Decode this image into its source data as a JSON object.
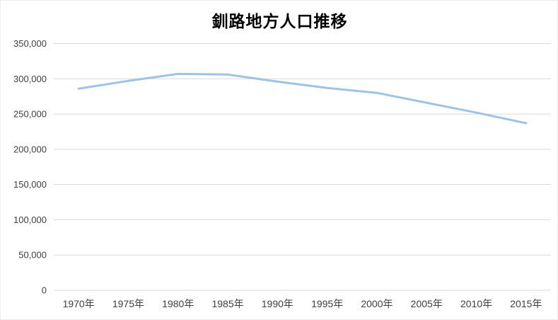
{
  "chart_data": {
    "type": "line",
    "title": "釧路地方人口推移",
    "categories": [
      "1970年",
      "1975年",
      "1980年",
      "1985年",
      "1990年",
      "1995年",
      "2000年",
      "2005年",
      "2010年",
      "2015年"
    ],
    "values": [
      286000,
      297000,
      307000,
      306000,
      296000,
      287000,
      280000,
      266000,
      252000,
      237000
    ],
    "xlabel": "",
    "ylabel": "",
    "ylim": [
      0,
      350000
    ],
    "ytick_step": 50000,
    "ytick_labels": [
      "0",
      "50,000",
      "100,000",
      "150,000",
      "200,000",
      "250,000",
      "300,000",
      "350,000"
    ],
    "grid": "horizontal-only",
    "legend": "none",
    "colors": {
      "line": "#9DC3E6",
      "gridline": "#D9D9D9",
      "tick_text": "#404040",
      "title_text": "#000000",
      "background": "#FFFFFF"
    }
  }
}
